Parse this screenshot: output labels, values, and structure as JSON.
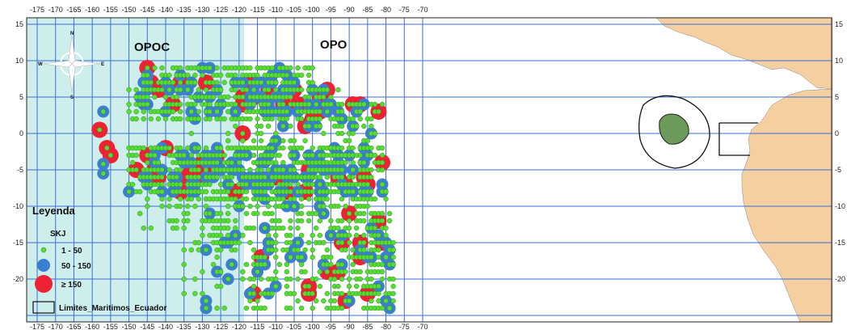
{
  "map": {
    "regions": {
      "opoc": "OPOC",
      "opo": "OPO"
    },
    "x_ticks": [
      "-175",
      "-170",
      "-165",
      "-160",
      "-155",
      "-150",
      "-145",
      "-140",
      "-135",
      "-130",
      "-125",
      "-120",
      "-115",
      "-110",
      "-105",
      "-100",
      "-95",
      "-90",
      "-85",
      "-80",
      "-75",
      "-70"
    ],
    "y_ticks": [
      "15",
      "10",
      "5",
      "0",
      "-5",
      "-10",
      "-15",
      "-20"
    ],
    "compass": {
      "n": "N",
      "s": "S",
      "e": "E",
      "w": "W"
    },
    "legend": {
      "title": "Leyenda",
      "variable": "SKJ",
      "classes": [
        {
          "label": "1 - 50",
          "color": "#55dd33"
        },
        {
          "label": "50 - 150",
          "color": "#3b7fd0"
        },
        {
          "label": "≥ 150",
          "color": "#ee2233"
        }
      ],
      "boundary_label": "Limites_Maritimos_Ecuador"
    },
    "colors": {
      "ocean": "#ffffff",
      "opoc_area": "#cdeeea",
      "land": "#f5cfa0",
      "grid": "#3a6fd8",
      "galapagos": "#6b9a5a"
    }
  }
}
